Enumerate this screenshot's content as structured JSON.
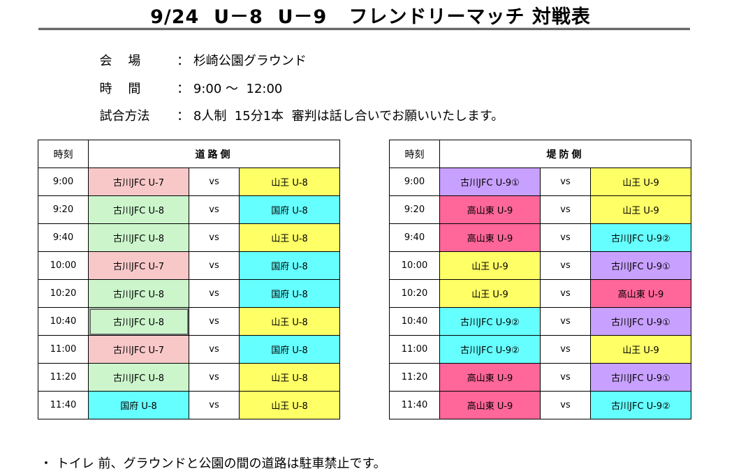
{
  "title": "9/24  U－8  U－9   フレンドリーマッチ 対戦表",
  "info": [
    {
      "label": "会    場",
      "sep": " ： ",
      "value": "杉崎公園グラウンド"
    },
    {
      "label": "時    間",
      "sep": " ： ",
      "value": "9:00 ～  12:00"
    },
    {
      "label": "試合方法",
      "sep": " ： ",
      "value": "8人制  15分1本  審判は話し合いでお願いいたします。"
    }
  ],
  "colors": {
    "u7_pink": "#f8c8c8",
    "u8_green": "#ccf5cc",
    "kokufu_cyan": "#66ffff",
    "sanno_yellow": "#ffff66",
    "u9_1_purple": "#c8a0ff",
    "takayama_red": "#ff6699",
    "u9_2_cyan": "#66ffff"
  },
  "left_table": {
    "time_header": "時刻",
    "side_header": "道路側",
    "rows": [
      {
        "time": "9:00",
        "home": "古川JFC  U-7",
        "home_color": "#f8c8c8",
        "vs": "vs",
        "away": "山王  U-8",
        "away_color": "#ffff66"
      },
      {
        "time": "9:20",
        "home": "古川JFC  U-8",
        "home_color": "#ccf5cc",
        "vs": "vs",
        "away": "国府  U-8",
        "away_color": "#66ffff"
      },
      {
        "time": "9:40",
        "home": "古川JFC  U-8",
        "home_color": "#ccf5cc",
        "vs": "vs",
        "away": "山王  U-8",
        "away_color": "#ffff66"
      },
      {
        "time": "10:00",
        "home": "古川JFC  U-7",
        "home_color": "#f8c8c8",
        "vs": "vs",
        "away": "国府  U-8",
        "away_color": "#66ffff"
      },
      {
        "time": "10:20",
        "home": "古川JFC  U-8",
        "home_color": "#ccf5cc",
        "vs": "vs",
        "away": "国府  U-8",
        "away_color": "#66ffff"
      },
      {
        "time": "10:40",
        "home": "古川JFC  U-8",
        "home_color": "#ccf5cc",
        "vs": "vs",
        "away": "山王  U-8",
        "away_color": "#ffff66",
        "selected": true
      },
      {
        "time": "11:00",
        "home": "古川JFC  U-7",
        "home_color": "#f8c8c8",
        "vs": "vs",
        "away": "国府  U-8",
        "away_color": "#66ffff"
      },
      {
        "time": "11:20",
        "home": "古川JFC  U-8",
        "home_color": "#ccf5cc",
        "vs": "vs",
        "away": "山王  U-8",
        "away_color": "#ffff66"
      },
      {
        "time": "11:40",
        "home": "国府  U-8",
        "home_color": "#66ffff",
        "vs": "vs",
        "away": "山王  U-8",
        "away_color": "#ffff66"
      }
    ]
  },
  "right_table": {
    "time_header": "時刻",
    "side_header": "堤防側",
    "rows": [
      {
        "time": "9:00",
        "home": "古川JFC  U-9①",
        "home_color": "#c8a0ff",
        "vs": "vs",
        "away": "山王  U-9",
        "away_color": "#ffff66"
      },
      {
        "time": "9:20",
        "home": "高山東  U-9",
        "home_color": "#ff6699",
        "vs": "vs",
        "away": "山王  U-9",
        "away_color": "#ffff66"
      },
      {
        "time": "9:40",
        "home": "高山東  U-9",
        "home_color": "#ff6699",
        "vs": "vs",
        "away": "古川JFC  U-9②",
        "away_color": "#66ffff"
      },
      {
        "time": "10:00",
        "home": "山王  U-9",
        "home_color": "#ffff66",
        "vs": "vs",
        "away": "古川JFC  U-9①",
        "away_color": "#c8a0ff"
      },
      {
        "time": "10:20",
        "home": "山王  U-9",
        "home_color": "#ffff66",
        "vs": "vs",
        "away": "高山東  U-9",
        "away_color": "#ff6699"
      },
      {
        "time": "10:40",
        "home": "古川JFC  U-9②",
        "home_color": "#66ffff",
        "vs": "vs",
        "away": "古川JFC  U-9①",
        "away_color": "#c8a0ff"
      },
      {
        "time": "11:00",
        "home": "古川JFC  U-9②",
        "home_color": "#66ffff",
        "vs": "vs",
        "away": "山王  U-9",
        "away_color": "#ffff66"
      },
      {
        "time": "11:20",
        "home": "高山東  U-9",
        "home_color": "#ff6699",
        "vs": "vs",
        "away": "古川JFC  U-9①",
        "away_color": "#c8a0ff"
      },
      {
        "time": "11:40",
        "home": "高山東  U-9",
        "home_color": "#ff6699",
        "vs": "vs",
        "away": "古川JFC  U-9②",
        "away_color": "#66ffff"
      }
    ]
  },
  "note": "・ トイレ 前、グラウンドと公園の間の道路は駐車禁止です。"
}
